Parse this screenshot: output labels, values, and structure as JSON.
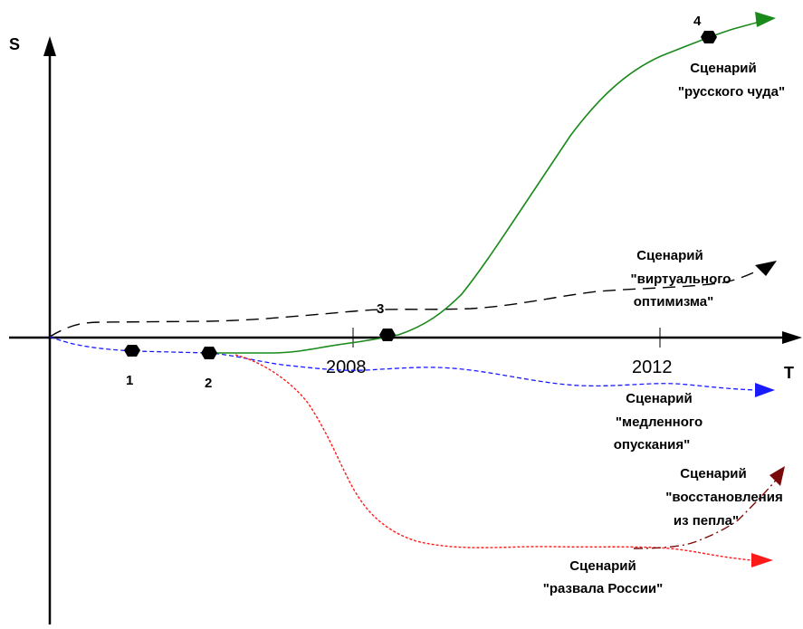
{
  "axes": {
    "y_label": "S",
    "x_label": "T",
    "ticks": [
      "2008",
      "2012"
    ]
  },
  "points": [
    {
      "label": "1"
    },
    {
      "label": "2"
    },
    {
      "label": "3"
    },
    {
      "label": "4"
    }
  ],
  "scenarios": {
    "russian_miracle": {
      "line1": "Сценарий",
      "line2": "\"русского чуда\"",
      "color": "#1a8a1a"
    },
    "virtual_optimism": {
      "line1": "Сценарий",
      "line2": "\"виртуального",
      "line3": "оптимизма\"",
      "color": "#000000"
    },
    "slow_descent": {
      "line1": "Сценарий",
      "line2": "\"медленного",
      "line3": "опускания\"",
      "color": "#1a1aff"
    },
    "recovery": {
      "line1": "Сценарий",
      "line2": "\"восстановления",
      "line3": "из пепла\"",
      "color": "#7a0a0a"
    },
    "collapse": {
      "line1": "Сценарий",
      "line2": "\"развала России\"",
      "color": "#ff1a1a"
    }
  }
}
